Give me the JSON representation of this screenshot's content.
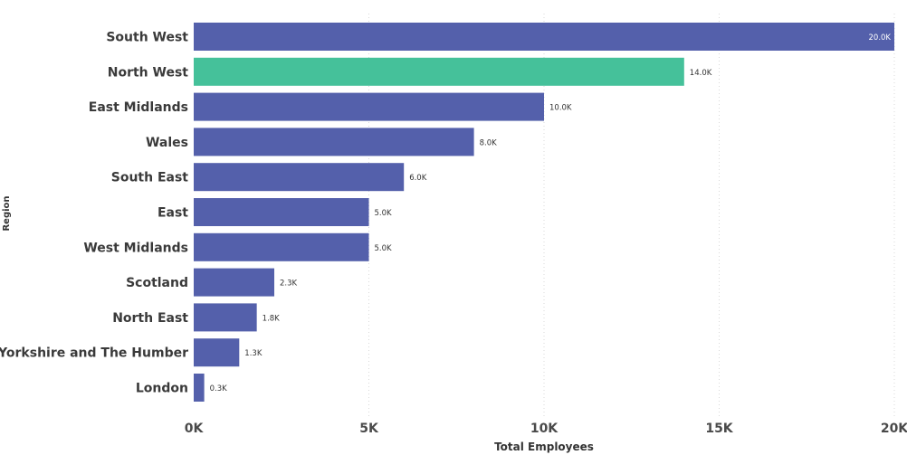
{
  "chart_data": {
    "type": "bar",
    "orientation": "horizontal",
    "xlabel": "Total Employees",
    "ylabel": "Region",
    "xlim": [
      0,
      20000
    ],
    "x_ticks": [
      {
        "value": 0,
        "label": "0K"
      },
      {
        "value": 5000,
        "label": "5K"
      },
      {
        "value": 10000,
        "label": "10K"
      },
      {
        "value": 15000,
        "label": "15K"
      },
      {
        "value": 20000,
        "label": "20K"
      }
    ],
    "grid": true,
    "legend": "none",
    "categories": [
      "South West",
      "North West",
      "East Midlands",
      "Wales",
      "South East",
      "East",
      "West Midlands",
      "Scotland",
      "North East",
      "Yorkshire and The Humber",
      "London"
    ],
    "values": [
      20000,
      14000,
      10000,
      8000,
      6000,
      5000,
      5000,
      2300,
      1800,
      1300,
      300
    ],
    "data_labels": [
      "20.0K",
      "14.0K",
      "10.0K",
      "8.0K",
      "6.0K",
      "5.0K",
      "5.0K",
      "2.3K",
      "1.8K",
      "1.3K",
      "0.3K"
    ],
    "bar_colors": [
      "#5460ab",
      "#45c19a",
      "#5460ab",
      "#5460ab",
      "#5460ab",
      "#5460ab",
      "#5460ab",
      "#5460ab",
      "#5460ab",
      "#5460ab",
      "#5460ab"
    ]
  }
}
